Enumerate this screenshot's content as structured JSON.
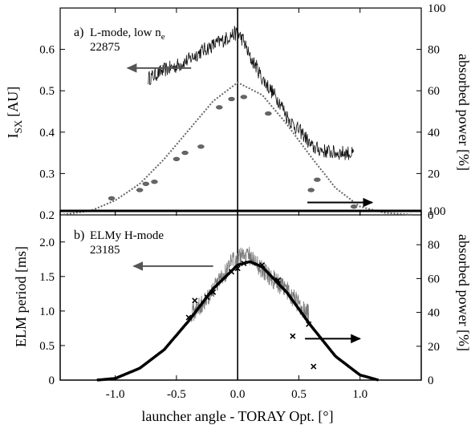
{
  "figure": {
    "xlabel": "launcher angle - TORAY Opt. [°]"
  },
  "chart_data": [
    {
      "type": "line",
      "panel_label": "a)",
      "annotation": {
        "line1": "L-mode, low n",
        "subscript": "e",
        "line2": "22875"
      },
      "xlabel": "launcher angle - TORAY Opt. [°]",
      "ylabel": "I",
      "ylabel_sub": "SX",
      "ylabel_unit": "[AU]",
      "y2label": "absorbed power [%]",
      "xlim": [
        -1.45,
        1.5
      ],
      "ylim": [
        0.2,
        0.7
      ],
      "y2lim": [
        0,
        100
      ],
      "xticks": [
        -1.0,
        -0.5,
        0.0,
        0.5,
        1.0
      ],
      "xtick_labels": [
        "-1.0",
        "-0.5",
        "0.0",
        "0.5",
        "1.0"
      ],
      "yticks": [
        0.2,
        0.3,
        0.4,
        0.5,
        0.6
      ],
      "ytick_labels": [
        "0.2",
        "0.3",
        "0.4",
        "0.5",
        "0.6"
      ],
      "y2ticks": [
        0,
        20,
        40,
        60,
        80,
        100
      ],
      "y2tick_labels": [
        "0",
        "20",
        "40",
        "60",
        "80",
        "100"
      ],
      "series": [
        {
          "kind": "noisy-trace",
          "axis": "left",
          "x": [
            -0.73,
            -0.6,
            -0.5,
            -0.4,
            -0.3,
            -0.2,
            -0.1,
            -0.05,
            0.0,
            0.05,
            0.1,
            0.15,
            0.2,
            0.25,
            0.3,
            0.35,
            0.4,
            0.45,
            0.5,
            0.55,
            0.6,
            0.7,
            0.8,
            0.9,
            0.95
          ],
          "y": [
            0.53,
            0.55,
            0.56,
            0.575,
            0.595,
            0.61,
            0.625,
            0.635,
            0.64,
            0.62,
            0.58,
            0.56,
            0.53,
            0.51,
            0.49,
            0.47,
            0.44,
            0.42,
            0.405,
            0.39,
            0.365,
            0.355,
            0.35,
            0.35,
            0.345
          ],
          "noise": 0.018
        },
        {
          "kind": "dotted-curve",
          "axis": "right",
          "x": [
            -1.45,
            -1.2,
            -1.0,
            -0.8,
            -0.6,
            -0.4,
            -0.2,
            0.0,
            0.2,
            0.4,
            0.6,
            0.8,
            1.0,
            1.2,
            1.45
          ],
          "y": [
            0,
            2,
            7,
            15,
            27,
            41,
            55,
            64,
            58,
            44,
            28,
            13,
            4,
            1,
            0
          ]
        },
        {
          "kind": "markers",
          "axis": "right",
          "marker": "diamond",
          "x": [
            -1.03,
            -0.8,
            -0.75,
            -0.68,
            -0.5,
            -0.43,
            -0.3,
            -0.15,
            -0.05,
            0.05,
            0.25,
            0.6,
            0.65,
            0.95
          ],
          "y": [
            8,
            12,
            15,
            16,
            27,
            30,
            33,
            52,
            56,
            57,
            49,
            12,
            17,
            4
          ]
        }
      ],
      "arrows": [
        {
          "direction": "left",
          "x0": -0.38,
          "x1": -0.9,
          "y": 0.555,
          "color": "#555555"
        },
        {
          "direction": "right",
          "x0": 0.57,
          "x1": 1.1,
          "y": 0.23,
          "color": "#000000"
        }
      ],
      "vertical_line_x": 0.0
    },
    {
      "type": "line",
      "panel_label": "b)",
      "annotation": {
        "line1": "ELMy H-mode",
        "subscript": "",
        "line2": "23185"
      },
      "xlabel": "launcher angle - TORAY Opt. [°]",
      "ylabel": "ELM period [ms]",
      "y2label": "absorbed power [%]",
      "xlim": [
        -1.45,
        1.5
      ],
      "ylim": [
        0,
        2.45
      ],
      "y2lim": [
        0,
        100
      ],
      "xticks": [
        -1.0,
        -0.5,
        0.0,
        0.5,
        1.0
      ],
      "xtick_labels": [
        "-1.0",
        "-0.5",
        "0.0",
        "0.5",
        "1.0"
      ],
      "yticks": [
        0,
        0.5,
        1.0,
        1.5,
        2.0
      ],
      "ytick_labels": [
        "0",
        "0.5",
        "1.0",
        "1.5",
        "2.0"
      ],
      "y2ticks": [
        0,
        20,
        40,
        60,
        80,
        100
      ],
      "y2tick_labels": [
        "0",
        "20",
        "40",
        "60",
        "80",
        "100"
      ],
      "series": [
        {
          "kind": "noisy-trace",
          "axis": "left",
          "x": [
            -0.38,
            -0.3,
            -0.2,
            -0.1,
            -0.05,
            0.0,
            0.05,
            0.1,
            0.2,
            0.3,
            0.4,
            0.5,
            0.58
          ],
          "y": [
            0.95,
            1.1,
            1.3,
            1.55,
            1.7,
            1.75,
            1.85,
            1.8,
            1.6,
            1.45,
            1.3,
            1.1,
            0.95
          ],
          "noise": 0.14
        },
        {
          "kind": "solid-curve",
          "axis": "right",
          "x": [
            -1.15,
            -1.0,
            -0.8,
            -0.6,
            -0.4,
            -0.2,
            0.0,
            0.1,
            0.2,
            0.4,
            0.6,
            0.8,
            1.0,
            1.15
          ],
          "y": [
            0,
            1,
            7,
            18,
            35,
            54,
            68,
            70,
            67,
            52,
            32,
            14,
            3,
            0
          ]
        },
        {
          "kind": "markers",
          "axis": "right",
          "marker": "cross",
          "x": [
            -0.4,
            -0.35,
            -0.25,
            -0.2,
            -0.05,
            0.0,
            0.05,
            0.2,
            0.33,
            0.45,
            0.58,
            0.62
          ],
          "y": [
            37,
            47,
            49,
            52,
            64,
            66,
            69,
            68,
            59,
            26,
            33,
            8
          ]
        }
      ],
      "arrows": [
        {
          "direction": "left",
          "x0": -0.2,
          "x1": -0.85,
          "y": 1.65,
          "color": "#555555"
        },
        {
          "direction": "right",
          "x0": 0.55,
          "x1": 1.0,
          "y": 0.6,
          "color": "#000000"
        }
      ],
      "vertical_line_x": 0.0
    }
  ]
}
